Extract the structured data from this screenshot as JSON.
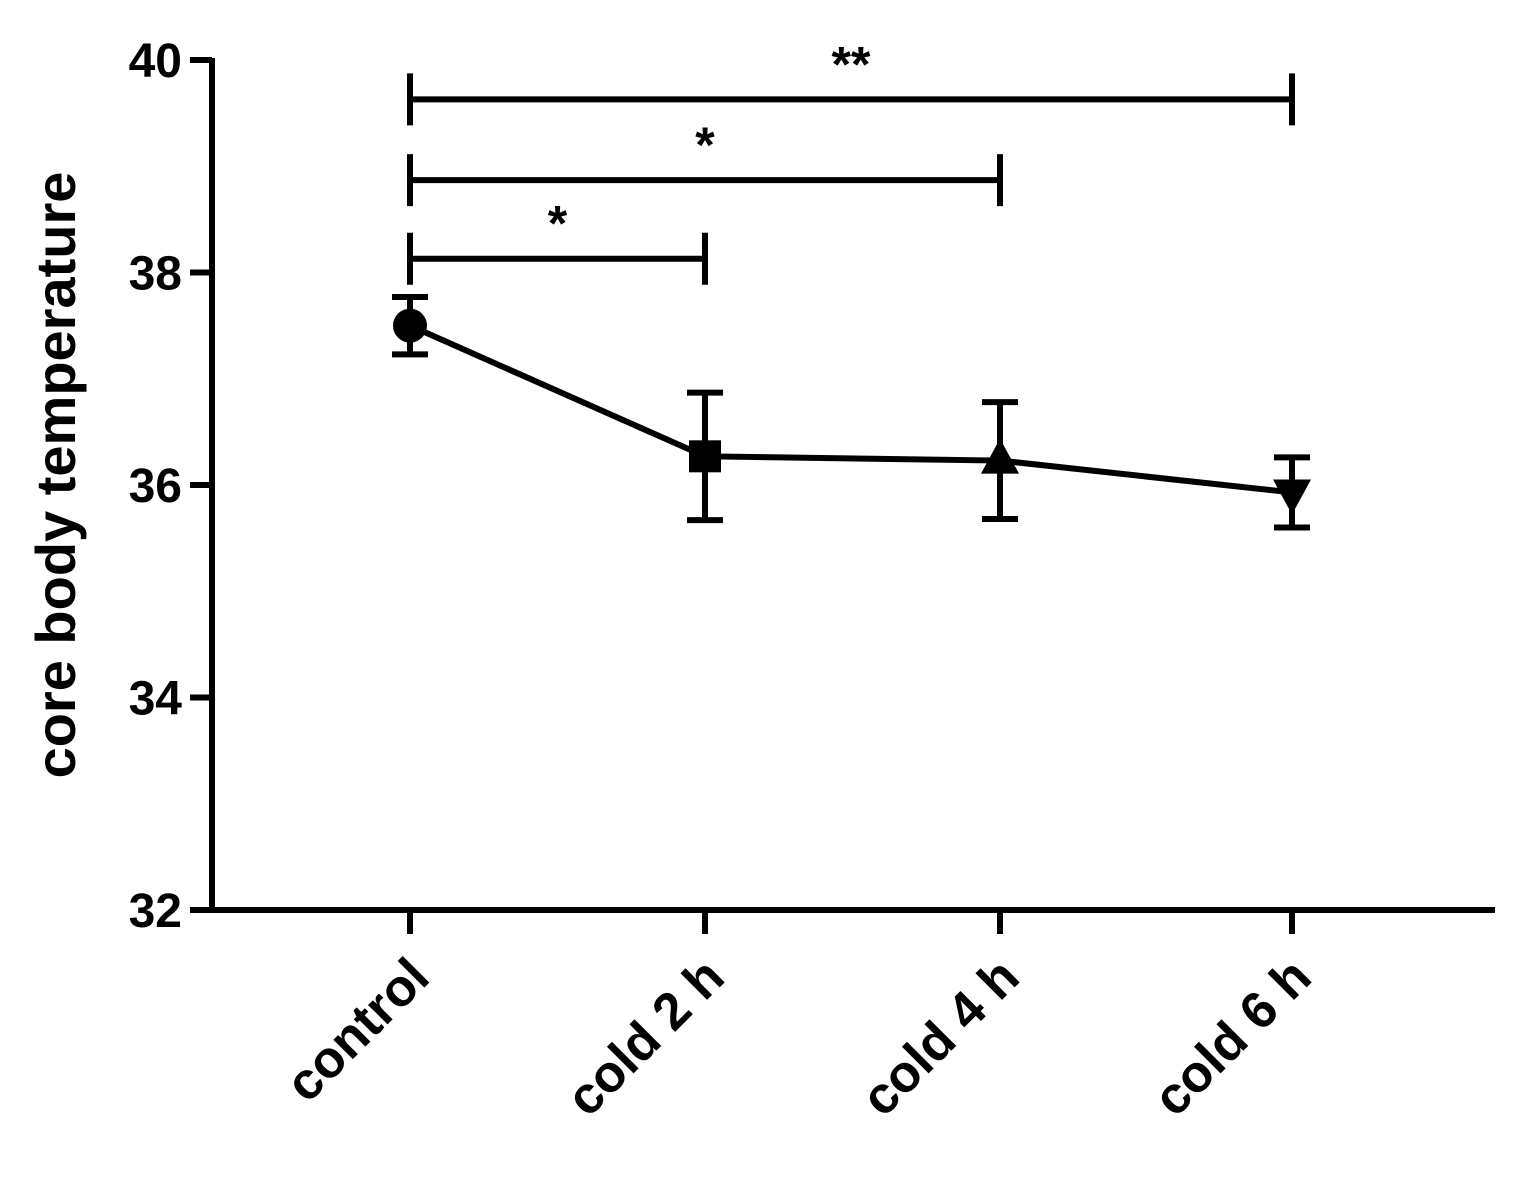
{
  "chart_data": {
    "type": "line",
    "title": "",
    "xlabel": "",
    "ylabel": "core body temperature",
    "categories": [
      "control",
      "cold 2 h",
      "cold 4 h",
      "cold 6 h"
    ],
    "ylim": [
      32,
      40
    ],
    "yticks": [
      "32",
      "34",
      "36",
      "38",
      "40"
    ],
    "grid": false,
    "legend": "none",
    "series": [
      {
        "values": [
          37.5,
          36.27,
          36.23,
          35.93
        ],
        "error": [
          0.27,
          0.6,
          0.55,
          0.33
        ],
        "markers": [
          "circle",
          "square",
          "triangle-up",
          "triangle-down"
        ],
        "color": "#000000"
      }
    ],
    "significance": [
      {
        "from": 0,
        "to": 1,
        "y": 38.13,
        "label": "*"
      },
      {
        "from": 0,
        "to": 2,
        "y": 38.87,
        "label": "*"
      },
      {
        "from": 0,
        "to": 3,
        "y": 39.63,
        "label": "**"
      }
    ]
  }
}
